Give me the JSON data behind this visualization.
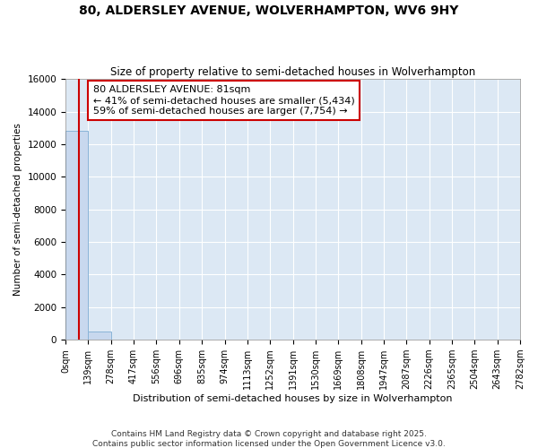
{
  "title": "80, ALDERSLEY AVENUE, WOLVERHAMPTON, WV6 9HY",
  "subtitle": "Size of property relative to semi-detached houses in Wolverhampton",
  "xlabel": "Distribution of semi-detached houses by size in Wolverhampton",
  "ylabel": "Number of semi-detached properties",
  "property_size": 81,
  "property_label": "80 ALDERSLEY AVENUE: 81sqm",
  "pct_smaller": 41,
  "pct_larger": 59,
  "count_smaller": 5434,
  "count_larger": 7754,
  "bin_edges": [
    0,
    139,
    278,
    417,
    556,
    696,
    835,
    974,
    1113,
    1252,
    1391,
    1530,
    1669,
    1808,
    1947,
    2087,
    2226,
    2365,
    2504,
    2643,
    2782
  ],
  "bin_counts": [
    12800,
    500,
    0,
    0,
    0,
    0,
    0,
    0,
    0,
    0,
    0,
    0,
    0,
    0,
    0,
    0,
    0,
    0,
    0,
    0
  ],
  "bar_color": "#c8d8ee",
  "bar_edge_color": "#8ab4d8",
  "vline_color": "#cc0000",
  "annotation_box_color": "#cc0000",
  "background_color": "#dce8f4",
  "grid_color": "#ffffff",
  "fig_bg_color": "#ffffff",
  "ylim": [
    0,
    16000
  ],
  "xlim": [
    0,
    2782
  ],
  "footer": "Contains HM Land Registry data © Crown copyright and database right 2025.\nContains public sector information licensed under the Open Government Licence v3.0.",
  "tick_labels": [
    "0sqm",
    "139sqm",
    "278sqm",
    "417sqm",
    "556sqm",
    "696sqm",
    "835sqm",
    "974sqm",
    "1113sqm",
    "1252sqm",
    "1391sqm",
    "1530sqm",
    "1669sqm",
    "1808sqm",
    "1947sqm",
    "2087sqm",
    "2226sqm",
    "2365sqm",
    "2504sqm",
    "2643sqm",
    "2782sqm"
  ],
  "yticks": [
    0,
    2000,
    4000,
    6000,
    8000,
    10000,
    12000,
    14000,
    16000
  ]
}
